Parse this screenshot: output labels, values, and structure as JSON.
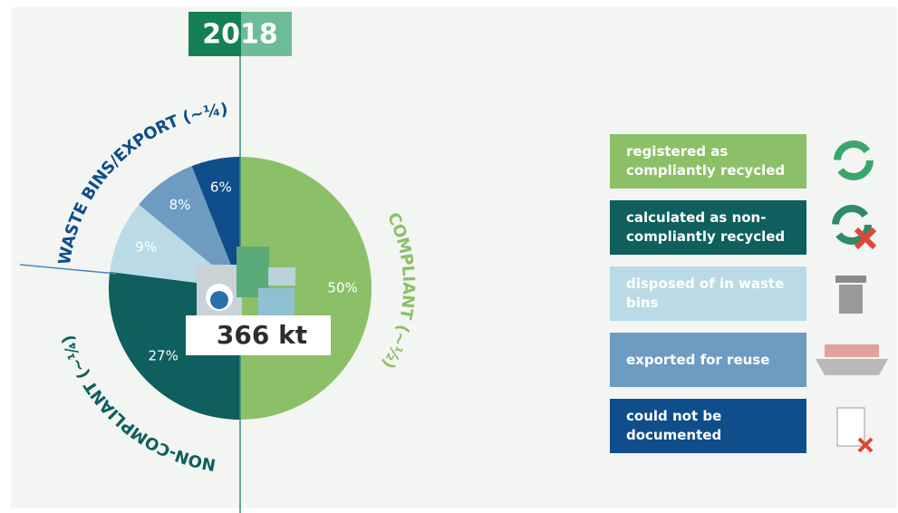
{
  "chart_data": {
    "type": "pie",
    "title": "2018",
    "center_label": "366 kt",
    "categories": [
      "registered as compliantly recycled",
      "calculated as non-compliantly recycled",
      "disposed of in waste bins",
      "exported for reuse",
      "could not be documented"
    ],
    "values": [
      50,
      27,
      9,
      8,
      6
    ],
    "value_labels": [
      "50%",
      "27%",
      "9%",
      "8%",
      "6%"
    ],
    "colors": [
      "#8cc068",
      "#0e5f5d",
      "#badbe5",
      "#6d9bc2",
      "#0f4e8a"
    ],
    "group_labels": [
      "COMPLIANT (~½)",
      "NON-COMPLIANT (~¼)",
      "WASTE BINS/EXPORT (~¼)"
    ]
  }
}
